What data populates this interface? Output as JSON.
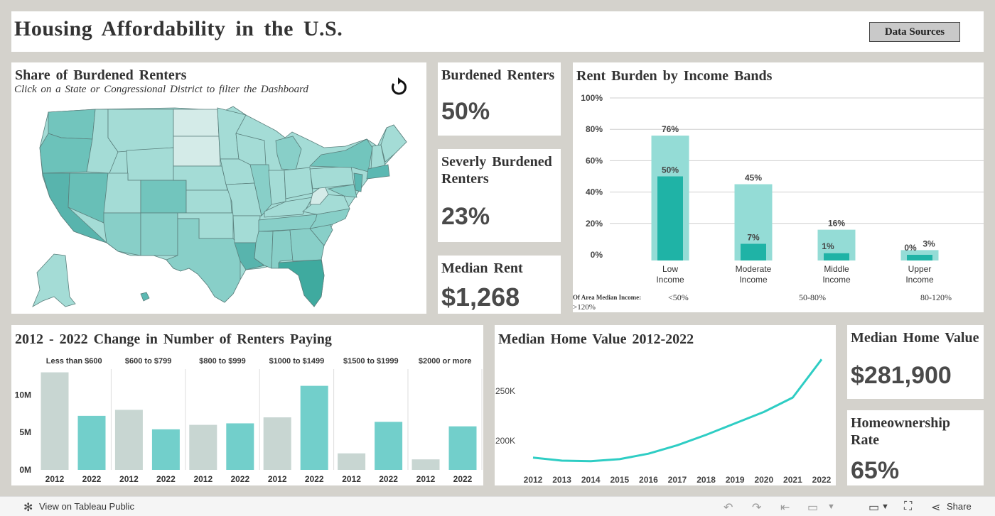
{
  "header": {
    "title": "Housing Affordability in the U.S.",
    "data_sources_label": "Data Sources"
  },
  "map": {
    "title": "Share of Burdened Renters",
    "subtitle": "Click on a State or Congressional District to filter the Dashboard",
    "reset_icon": "reset-icon",
    "colors": {
      "light": "#d4ebe8",
      "mid": "#a4dcd6",
      "dark": "#5bb8b2"
    }
  },
  "kpis": {
    "burdened": {
      "title": "Burdened Renters",
      "value": "50%"
    },
    "severe": {
      "title": "Severly Burdened Renters",
      "value": "23%"
    },
    "median_rent": {
      "title": "Median Rent",
      "value": "$1,268"
    },
    "home_value": {
      "title": "Median Home Value",
      "value": "$281,900"
    },
    "ownership": {
      "title": "Homeownership Rate",
      "value": "65%"
    }
  },
  "income_bands": {
    "title": "Rent Burden by Income Bands",
    "ami_label": "Of Area Median Income:",
    "ami_values": [
      "<50%",
      "50-80%",
      "80-120%",
      ">120%"
    ]
  },
  "renters_change": {
    "title": "2012 - 2022 Change in Number of Renters Paying"
  },
  "home_value_chart": {
    "title": "Median Home Value 2012-2022"
  },
  "chart_data": [
    {
      "type": "bar",
      "title": "Rent Burden by Income Bands",
      "categories": [
        "Low Income",
        "Moderate Income",
        "Middle Income",
        "Upper Income"
      ],
      "series": [
        {
          "values": [
            76,
            45,
            16,
            3
          ],
          "labels": [
            "76%",
            "45%",
            "16%",
            "3%"
          ],
          "color": "#94dcd6"
        },
        {
          "values": [
            50,
            7,
            1,
            0
          ],
          "labels": [
            "50%",
            "7%",
            "1%",
            "0%"
          ],
          "color": "#1fb3a6"
        }
      ],
      "ylim": [
        0,
        100
      ],
      "yticks": [
        0,
        20,
        40,
        60,
        80,
        100
      ],
      "ytick_labels": [
        "0%",
        "20%",
        "40%",
        "60%",
        "80%",
        "100%"
      ],
      "grid": true
    },
    {
      "type": "bar",
      "title": "2012 - 2022 Change in Number of Renters Paying",
      "groups": [
        "Less than $600",
        "$600 to $799",
        "$800 to $999",
        "$1000 to $1499",
        "$1500 to $1999",
        "$2000 or more"
      ],
      "x_labels": [
        "2012",
        "2022"
      ],
      "values_2012": [
        13.0,
        8.0,
        6.0,
        7.0,
        2.2,
        1.4
      ],
      "values_2022": [
        7.2,
        5.4,
        6.2,
        11.2,
        6.4,
        5.8
      ],
      "colors": {
        "2012": "#c8d6d2",
        "2022": "#72cfcb"
      },
      "ylim": [
        0,
        14
      ],
      "yticks": [
        0,
        5,
        10
      ],
      "ytick_labels": [
        "0M",
        "5M",
        "10M"
      ]
    },
    {
      "type": "line",
      "title": "Median Home Value 2012-2022",
      "x": [
        "2012",
        "2013",
        "2014",
        "2015",
        "2016",
        "2017",
        "2018",
        "2019",
        "2020",
        "2021",
        "2022"
      ],
      "y": [
        183000,
        180000,
        179500,
        181500,
        187000,
        195500,
        206000,
        217500,
        229000,
        243500,
        281900
      ],
      "ylim": [
        170000,
        290000
      ],
      "yticks": [
        200000,
        250000
      ],
      "ytick_labels": [
        "200K",
        "250K"
      ],
      "color": "#2ecdc4"
    }
  ],
  "footer": {
    "view_label": "View on Tableau Public",
    "share_label": "Share"
  }
}
